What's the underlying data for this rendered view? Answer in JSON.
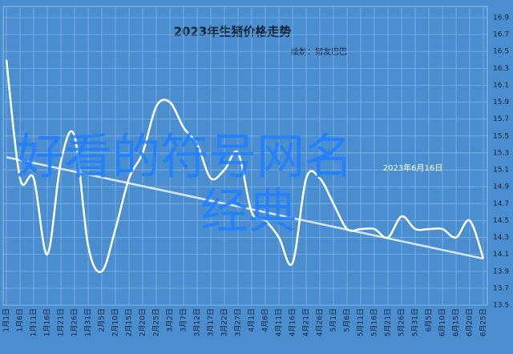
{
  "chart_data": {
    "type": "line",
    "title": "2023年生猪价格走势",
    "subtitle": "绘制：猪友巴巴",
    "annotation": "2023年6月16日",
    "watermark": [
      "好看的符号网名",
      "经典"
    ],
    "categories": [
      "1月1日",
      "1月6日",
      "1月11日",
      "1月16日",
      "1月21日",
      "1月26日",
      "1月31日",
      "2月5日",
      "2月10日",
      "2月15日",
      "2月20日",
      "2月25日",
      "3月2日",
      "3月7日",
      "3月12日",
      "3月17日",
      "3月22日",
      "3月27日",
      "4月1日",
      "4月6日",
      "4月11日",
      "4月16日",
      "4月21日",
      "4月26日",
      "5月1日",
      "5月6日",
      "5月11日",
      "5月16日",
      "5月21日",
      "5月26日",
      "5月31日",
      "6月5日",
      "6月10日",
      "6月15日",
      "6月20日",
      "6月25日"
    ],
    "series": [
      {
        "color": "#ffffff",
        "values": [
          16.4,
          15.0,
          15.0,
          14.1,
          15.2,
          15.5,
          14.2,
          13.9,
          14.4,
          15.0,
          15.3,
          15.85,
          15.9,
          15.6,
          15.4,
          15.0,
          15.1,
          15.3,
          14.6,
          14.5,
          14.3,
          14.0,
          15.0,
          15.0,
          14.7,
          14.4,
          14.4,
          14.4,
          14.3,
          14.55,
          14.4,
          14.4,
          14.4,
          14.3,
          14.5,
          14.05
        ]
      }
    ],
    "trendline": [
      15.25,
      14.05
    ],
    "ylim": [
      13.5,
      16.9
    ],
    "yticks": [
      13.5,
      13.7,
      13.9,
      14.1,
      14.3,
      14.5,
      14.7,
      14.9,
      15.1,
      15.3,
      15.5,
      15.7,
      15.9,
      16.1,
      16.3,
      16.5,
      16.7,
      16.9
    ],
    "grid": true,
    "background": "#4a8ed0"
  }
}
